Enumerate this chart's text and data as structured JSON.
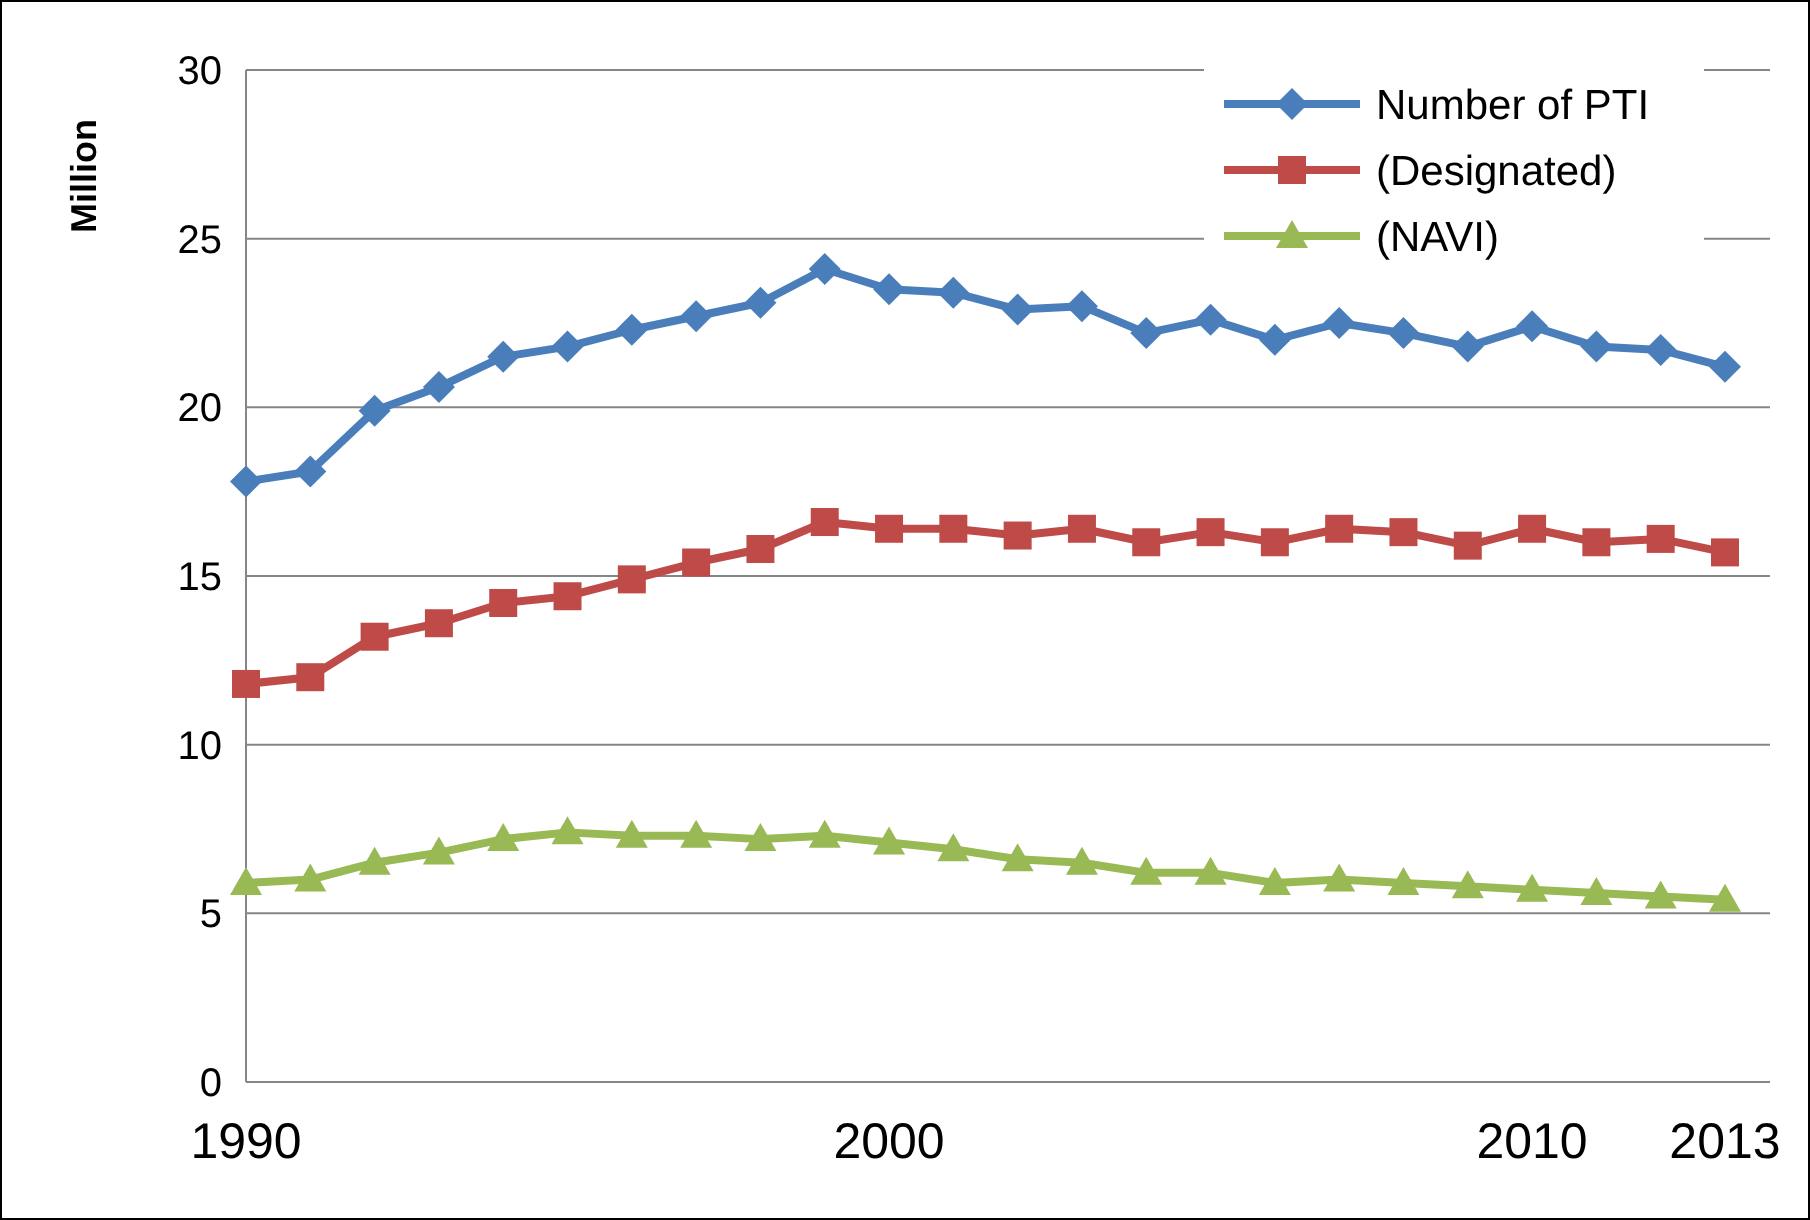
{
  "chart_data": {
    "type": "line",
    "ylabel": "Million",
    "x": [
      1990,
      1991,
      1992,
      1993,
      1994,
      1995,
      1996,
      1997,
      1998,
      1999,
      2000,
      2001,
      2002,
      2003,
      2004,
      2005,
      2006,
      2007,
      2008,
      2009,
      2010,
      2011,
      2012,
      2013
    ],
    "xlim": [
      1990,
      2013.7
    ],
    "xticks": [
      1990,
      2000,
      2010,
      2013
    ],
    "ylim": [
      0,
      30
    ],
    "yticks": [
      0,
      5,
      10,
      15,
      20,
      25,
      30
    ],
    "grid": "y",
    "legend": "top right",
    "series": [
      {
        "name": "Number of PTI",
        "color": "#4a7ebb",
        "marker": "diamond",
        "values": [
          17.8,
          18.1,
          19.9,
          20.6,
          21.5,
          21.8,
          22.3,
          22.7,
          23.1,
          24.1,
          23.5,
          23.4,
          22.9,
          23.0,
          22.2,
          22.6,
          22.0,
          22.5,
          22.2,
          21.8,
          22.4,
          21.8,
          21.7,
          21.2
        ]
      },
      {
        "name": "(Designated)",
        "color": "#be4b48",
        "marker": "square",
        "values": [
          11.8,
          12.0,
          13.2,
          13.6,
          14.2,
          14.4,
          14.9,
          15.4,
          15.8,
          16.6,
          16.4,
          16.4,
          16.2,
          16.4,
          16.0,
          16.3,
          16.0,
          16.4,
          16.3,
          15.9,
          16.4,
          16.0,
          16.1,
          15.7
        ]
      },
      {
        "name": "(NAVI)",
        "color": "#98b954",
        "marker": "triangle",
        "values": [
          5.9,
          6.0,
          6.5,
          6.8,
          7.2,
          7.4,
          7.3,
          7.3,
          7.2,
          7.3,
          7.1,
          6.9,
          6.6,
          6.5,
          6.2,
          6.2,
          5.9,
          6.0,
          5.9,
          5.8,
          5.7,
          5.6,
          5.5,
          5.4
        ]
      }
    ]
  }
}
